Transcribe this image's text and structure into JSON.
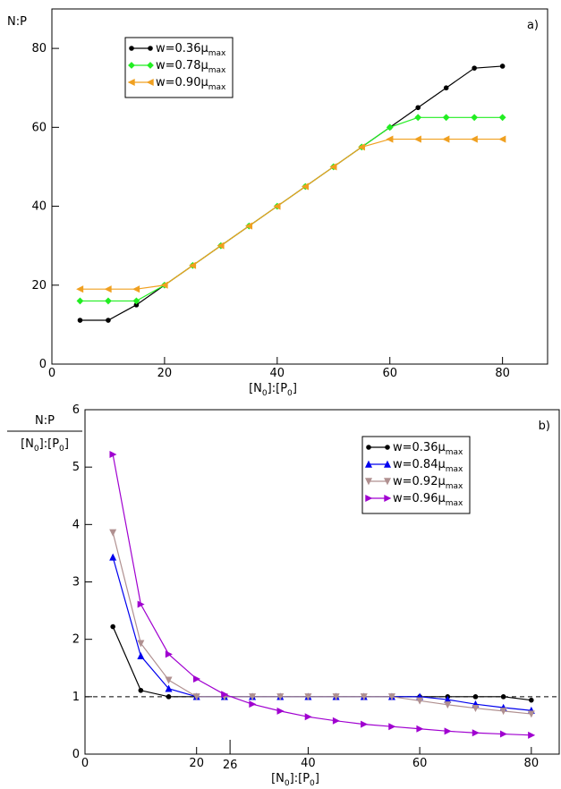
{
  "chart_data": [
    {
      "type": "line",
      "annotation": "a)",
      "ylabel": "N:P",
      "xlabel": "[N0]:[P0]",
      "x": [
        5,
        10,
        15,
        20,
        25,
        30,
        35,
        40,
        45,
        50,
        55,
        60,
        65,
        70,
        75,
        80
      ],
      "xlim": [
        0,
        88
      ],
      "ylim": [
        0,
        90
      ],
      "xticks": [
        0,
        20,
        40,
        60,
        80
      ],
      "yticks": [
        0,
        20,
        40,
        60,
        80
      ],
      "legend": "upper left",
      "series": [
        {
          "name": "w=0.36μmax",
          "color": "#000000",
          "marker": "circle",
          "values": [
            11.1,
            11.1,
            15,
            20,
            25,
            30,
            35,
            40,
            45,
            50,
            55,
            60,
            65,
            70,
            75,
            75.5
          ]
        },
        {
          "name": "w=0.78μmax",
          "color": "#22ee22",
          "marker": "diamond",
          "values": [
            16,
            16,
            16,
            20,
            25,
            30,
            35,
            40,
            45,
            50,
            55,
            60,
            62.5,
            62.5,
            62.5,
            62.5
          ]
        },
        {
          "name": "w=0.90μmax",
          "color": "#f0a020",
          "marker": "left",
          "values": [
            19,
            19,
            19,
            20,
            25,
            30,
            35,
            40,
            45,
            50,
            55,
            57,
            57,
            57,
            57,
            57
          ]
        }
      ]
    },
    {
      "type": "line",
      "annotation": "b)",
      "ylabel_numerator": "N:P",
      "ylabel_denominator": "[N0]:[P0]",
      "xlabel": "[N0]:[P0]",
      "x": [
        5,
        10,
        15,
        20,
        25,
        30,
        35,
        40,
        45,
        50,
        55,
        60,
        65,
        70,
        75,
        80
      ],
      "xlim": [
        0,
        85
      ],
      "ylim": [
        0,
        6
      ],
      "xticks": [
        0,
        20,
        40,
        60,
        80
      ],
      "yticks": [
        0,
        1,
        2,
        3,
        4,
        5,
        6
      ],
      "xmarker": 26,
      "reference_line": 1,
      "legend": "upper right",
      "series": [
        {
          "name": "w=0.36μmax",
          "color": "#000000",
          "marker": "circle",
          "values": [
            2.22,
            1.11,
            1,
            1,
            1,
            1,
            1,
            1,
            1,
            1,
            1,
            1,
            1,
            1,
            1,
            0.94
          ]
        },
        {
          "name": "w=0.84μmax",
          "color": "#0000ee",
          "marker": "up",
          "values": [
            3.43,
            1.71,
            1.14,
            1,
            1,
            1,
            1,
            1,
            1,
            1,
            1,
            1,
            0.95,
            0.87,
            0.81,
            0.76
          ]
        },
        {
          "name": "w=0.92μmax",
          "color": "#b09090",
          "marker": "down",
          "values": [
            3.86,
            1.93,
            1.29,
            1,
            1,
            1,
            1,
            1,
            1,
            1,
            1,
            0.93,
            0.86,
            0.8,
            0.75,
            0.7
          ]
        },
        {
          "name": "w=0.96μmax",
          "color": "#a000d0",
          "marker": "right",
          "values": [
            5.22,
            2.61,
            1.74,
            1.31,
            1.04,
            0.87,
            0.75,
            0.65,
            0.58,
            0.52,
            0.48,
            0.44,
            0.4,
            0.37,
            0.35,
            0.33
          ]
        }
      ]
    }
  ]
}
